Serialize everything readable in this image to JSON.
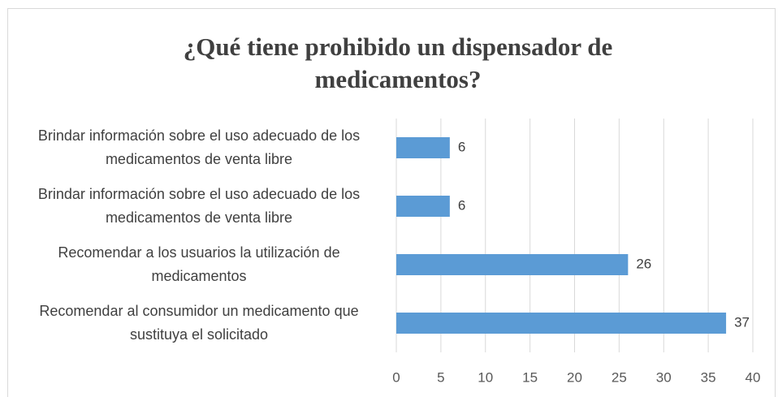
{
  "chart_data": {
    "type": "bar",
    "orientation": "horizontal",
    "title": "¿Qué tiene prohibido un dispensador de medicamentos?",
    "categories": [
      "Brindar información sobre el uso adecuado de los medicamentos de venta libre",
      "Brindar información sobre el uso adecuado de los medicamentos de venta libre",
      "Recomendar a los usuarios la utilización de medicamentos",
      "Recomendar al consumidor un medicamento que sustituya el solicitado"
    ],
    "values": [
      6,
      6,
      26,
      37
    ],
    "color": "#5b9bd5",
    "xlim": [
      0,
      40
    ],
    "xticks": [
      0,
      5,
      10,
      15,
      20,
      25,
      30,
      35,
      40
    ],
    "grid": true
  }
}
